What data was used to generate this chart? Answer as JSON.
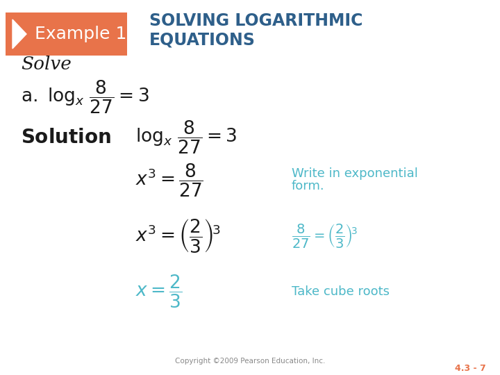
{
  "bg_color": "#ffffff",
  "header_box_color": "#e8734a",
  "header_text_color": "#ffffff",
  "title_color": "#2e5f8a",
  "dark_text_color": "#1a1a1a",
  "teal_color": "#4db8c8",
  "annotation_color": "#4db8c8",
  "slide_number_color": "#e8734a",
  "header_label": "Example 1",
  "header_title_line1": "SOLVING LOGARITHMIC",
  "header_title_line2": "EQUATIONS",
  "slide_number": "4.3 - 7",
  "copyright": "Copyright ©2009 Pearson Education, Inc."
}
